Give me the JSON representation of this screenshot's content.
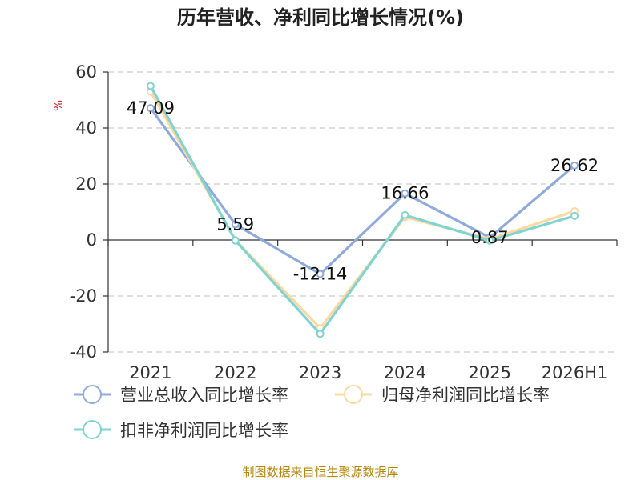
{
  "chart_data": {
    "type": "line",
    "title": "历年营收、净利同比增长情况(%)",
    "ylabel": "%",
    "categories": [
      "2021",
      "2022",
      "2023",
      "2024",
      "2025",
      "2026H1"
    ],
    "ylim": [
      -40,
      60
    ],
    "yticks": [
      60,
      40,
      20,
      0,
      -20,
      -40
    ],
    "grid": true,
    "legend_position": "bottom",
    "series": [
      {
        "name": "营业总收入同比增长率",
        "color": "#8faadc",
        "values": [
          47.09,
          5.59,
          -12.14,
          16.66,
          0.87,
          26.62
        ],
        "labels": [
          "47.09",
          "5.59",
          "-12.14",
          "16.66",
          "0.87",
          "26.62"
        ]
      },
      {
        "name": "归母净利润同比增长率",
        "color": "#fdd9a0",
        "values": [
          53.0,
          0.0,
          -31.5,
          8.2,
          0.3,
          10.3
        ]
      },
      {
        "name": "扣非净利润同比增长率",
        "color": "#7fd3d3",
        "values": [
          55.0,
          -0.2,
          -33.5,
          8.9,
          -0.2,
          8.6
        ]
      }
    ],
    "source": "制图数据来自恒生聚源数据库"
  }
}
